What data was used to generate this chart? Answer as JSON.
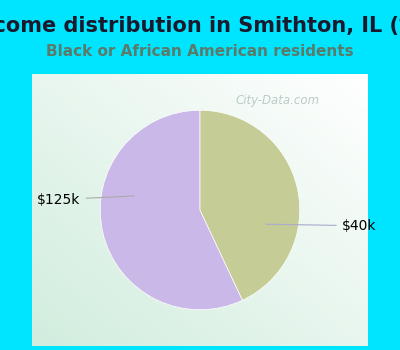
{
  "title": "Income distribution in Smithton, IL (%)",
  "subtitle": "Black or African American residents",
  "title_color": "#1a1a2e",
  "subtitle_color": "#5a7a6a",
  "outer_bg_color": "#00e5ff",
  "watermark": "City-Data.com",
  "watermark_color": "#b0c4c0",
  "slices": [
    {
      "label": "$40k",
      "value": 57,
      "color": "#c9b8e8"
    },
    {
      "label": "$125k",
      "value": 43,
      "color": "#c5cc96"
    }
  ],
  "label_color": "#000000",
  "label_fontsize": 10,
  "title_fontsize": 15,
  "subtitle_fontsize": 11,
  "startangle": 90
}
